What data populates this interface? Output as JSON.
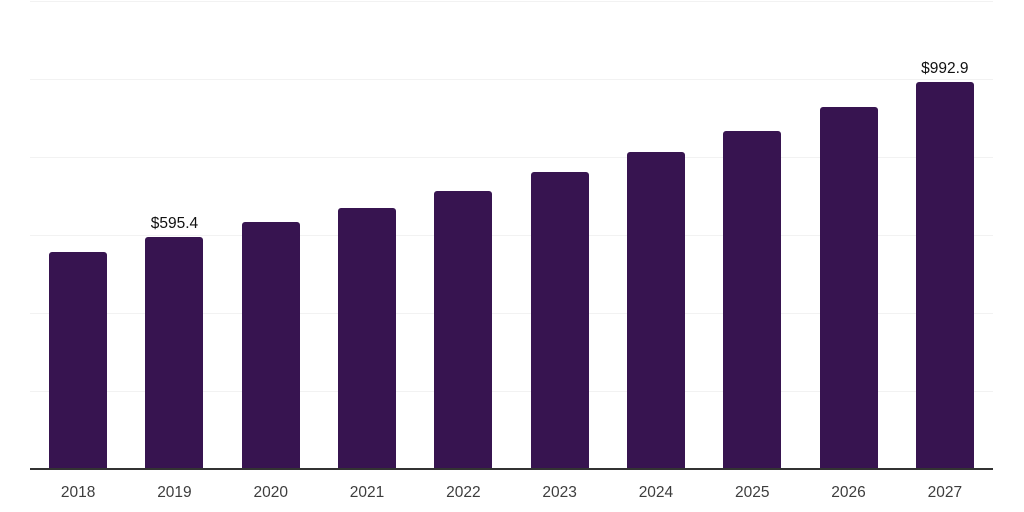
{
  "chart_data": {
    "type": "bar",
    "title": "",
    "xlabel": "",
    "ylabel": "",
    "categories": [
      "2018",
      "2019",
      "2020",
      "2021",
      "2022",
      "2023",
      "2024",
      "2025",
      "2026",
      "2027"
    ],
    "values": [
      557,
      595.4,
      633,
      670,
      713,
      762,
      813,
      867,
      929,
      992.9
    ],
    "bar_labels": [
      "",
      "$595.4",
      "",
      "",
      "",
      "",
      "",
      "",
      "",
      "$992.9"
    ],
    "ylim": [
      0,
      1200
    ],
    "grid_step": 200,
    "grid": true,
    "legend": false,
    "colors": {
      "bar": "#371450",
      "axis_line": "#333333",
      "gridline": "#f2f2f2",
      "value_label": "#111111",
      "tick_label": "#3d3d3d"
    }
  }
}
